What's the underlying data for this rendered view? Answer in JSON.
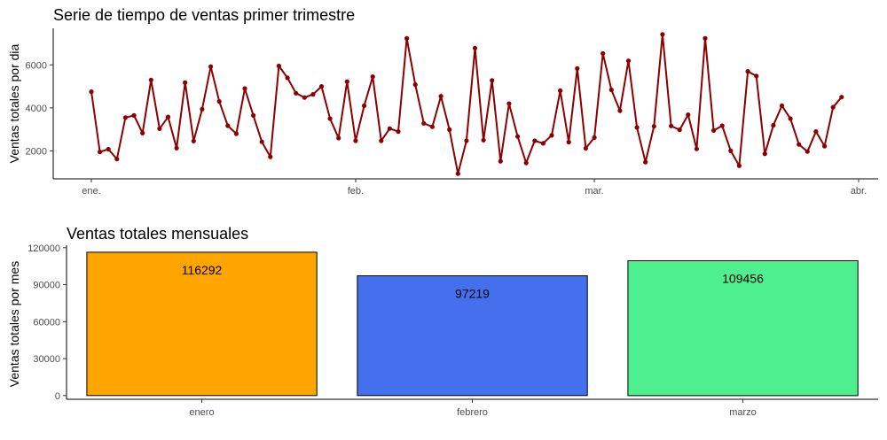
{
  "chart_data": [
    {
      "type": "line",
      "title": "Serie de tiempo de ventas primer trimestre",
      "ylabel": "Ventas totales por dia",
      "xlabel": "",
      "ylim": [
        700,
        7700
      ],
      "yticks": [
        2000,
        4000,
        6000
      ],
      "xticks": [
        {
          "label": "ene.",
          "day": 0
        },
        {
          "label": "feb.",
          "day": 31
        },
        {
          "label": "mar.",
          "day": 59
        },
        {
          "label": "abr.",
          "day": 90
        }
      ],
      "grid": false,
      "line_color": "#8b0000",
      "series": [
        {
          "values": [
            4750,
            1950,
            2080,
            1620,
            3550,
            3650,
            2830,
            5300,
            3030,
            3580,
            2130,
            5180,
            2460,
            3940,
            5920,
            4300,
            3170,
            2800,
            4900,
            3650,
            2420,
            1720,
            5950,
            5400,
            4680,
            4480,
            4630,
            5000,
            3500,
            2600,
            5220,
            2470,
            4100,
            5450,
            2470,
            3040,
            2900,
            7230,
            5080,
            3280,
            3120,
            4540,
            2990,
            940,
            2470,
            6780,
            2500,
            5280,
            1520,
            4200,
            2670,
            1440,
            2470,
            2350,
            2720,
            4800,
            2410,
            5830,
            2120,
            2620,
            6530,
            4840,
            3870,
            6190,
            3090,
            1480,
            3140,
            7420,
            3160,
            2980,
            3680,
            2090,
            7230,
            2950,
            3170,
            2000,
            1310,
            5700,
            5480,
            1860,
            3190,
            4100,
            3500,
            2300,
            1970,
            2900,
            2220,
            4030,
            4500
          ]
        }
      ]
    },
    {
      "type": "bar",
      "title": "Ventas totales mensuales",
      "ylabel": "Ventas totales por mes",
      "xlabel": "",
      "ylim": [
        -3000,
        122000
      ],
      "yticks": [
        0,
        30000,
        60000,
        90000,
        120000
      ],
      "categories": [
        "enero",
        "febrero",
        "marzo"
      ],
      "values": [
        116292,
        97219,
        109456
      ],
      "value_labels": [
        "116292",
        "97219",
        "109456"
      ],
      "colors": [
        "#ffa500",
        "#4470ee",
        "#4def8e"
      ],
      "grid": false
    }
  ]
}
